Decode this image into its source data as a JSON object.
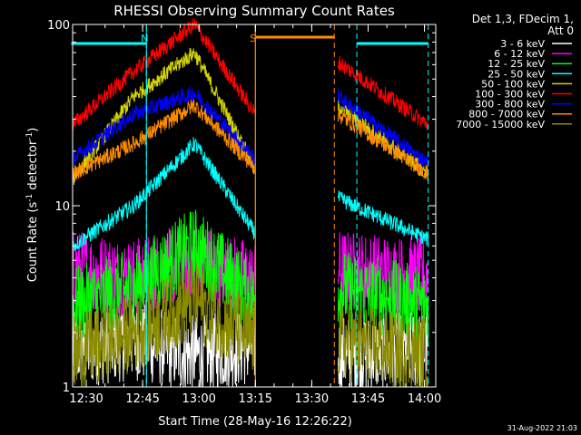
{
  "chart_data": {
    "type": "line",
    "title": "RHESSI Observing Summary Count Rates",
    "xlabel": "Start Time (28-May-16 12:26:22)",
    "ylabel": "Count Rate (s⁻¹ detector⁻¹)",
    "ylabel_parts": {
      "base": "Count Rate (s",
      "exp1": "-1",
      "mid": " detector",
      "exp2": "-1",
      "end": ")"
    },
    "x_axis": {
      "type": "time",
      "range": [
        "12:26:22",
        "14:03:00"
      ],
      "ticks": [
        "12:30",
        "12:45",
        "13:00",
        "13:15",
        "13:30",
        "13:45",
        "14:00"
      ]
    },
    "y_axis": {
      "scale": "log",
      "range": [
        1,
        100
      ],
      "ticks": [
        "1",
        "10",
        "100"
      ]
    },
    "info_lines": [
      "Det 1,3, FDecim 1,",
      "Att 0"
    ],
    "timestamp": "31-Aug-2022 21:03",
    "flags": [
      {
        "label": "N",
        "color": "#00ffff",
        "time": "12:46"
      },
      {
        "label": "S",
        "color": "#ff8c00",
        "time": "13:15"
      }
    ],
    "night_intervals": [
      [
        "12:26",
        "12:46"
      ],
      [
        "13:42",
        "14:01"
      ]
    ],
    "saa_interval": [
      "13:15",
      "13:36"
    ],
    "series": [
      {
        "name": "3 - 6 keV",
        "color": "#ffffff"
      },
      {
        "name": "6 - 12 keV",
        "color": "#ff00ff"
      },
      {
        "name": "12 - 25 keV",
        "color": "#00ff00"
      },
      {
        "name": "25 - 50 keV",
        "color": "#00ffff"
      },
      {
        "name": "50 - 100 keV",
        "color": "#d4d400"
      },
      {
        "name": "100 - 300 keV",
        "color": "#ff0000"
      },
      {
        "name": "300 - 800 keV",
        "color": "#0000ff"
      },
      {
        "name": "800 - 7000 keV",
        "color": "#ff8c00"
      },
      {
        "name": "7000 - 15000 keV",
        "color": "#8b8b00"
      }
    ],
    "data": {
      "segments": [
        [
          "12:26:22",
          "13:15:00"
        ],
        [
          "13:37:00",
          "14:01:00"
        ]
      ],
      "3 - 6 keV": [
        [
          1.6,
          1.8,
          1.5,
          1.7
        ],
        [
          1.5,
          1.6
        ]
      ],
      "6 - 12 keV": [
        [
          4.5,
          4.0,
          5.0,
          3.8
        ],
        [
          4.5,
          4.0
        ]
      ],
      "12 - 25 keV": [
        [
          2.8,
          3.5,
          6.0,
          3.0
        ],
        [
          3.5,
          2.8
        ]
      ],
      "25 - 50 keV": [
        [
          6.0,
          10,
          22,
          7.0
        ],
        [
          11,
          6.5
        ]
      ],
      "50 - 100 keV": [
        [
          14,
          40,
          70,
          16
        ],
        [
          36,
          15
        ]
      ],
      "100 - 300 keV": [
        [
          28,
          55,
          100,
          32
        ],
        [
          62,
          28
        ]
      ],
      "300 - 800 keV": [
        [
          18,
          32,
          42,
          18
        ],
        [
          40,
          17
        ]
      ],
      "800 - 7000 keV": [
        [
          15,
          22,
          36,
          16
        ],
        [
          32,
          15
        ]
      ],
      "7000 - 15000 keV": [
        [
          1.5,
          2.0,
          3.0,
          1.8
        ],
        [
          1.8,
          1.5
        ]
      ]
    }
  }
}
